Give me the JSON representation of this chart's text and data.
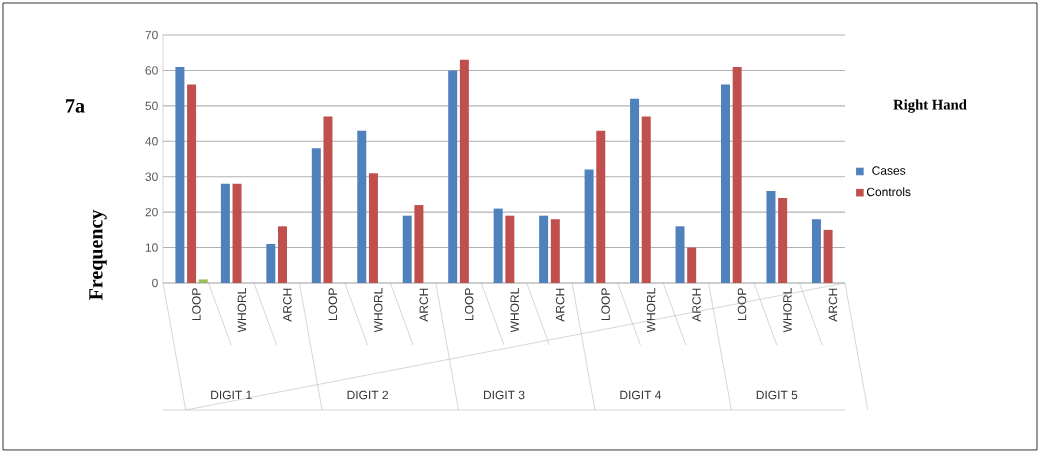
{
  "chart_data": {
    "type": "bar",
    "ylabel": "Frequency",
    "categories": [
      "LOOP",
      "WHORL",
      "ARCH",
      "LOOP",
      "WHORL",
      "ARCH",
      "LOOP",
      "WHORL",
      "ARCH",
      "LOOP",
      "WHORL",
      "ARCH",
      "LOOP",
      "WHORL",
      "ARCH"
    ],
    "series": [
      {
        "name": "Cases",
        "color": "#4f81bd",
        "values": [
          61,
          28,
          11,
          38,
          43,
          19,
          60,
          21,
          19,
          32,
          52,
          16,
          56,
          26,
          18
        ]
      },
      {
        "name": "Controls",
        "color": "#c0504d",
        "values": [
          56,
          28,
          16,
          47,
          31,
          22,
          63,
          19,
          18,
          43,
          47,
          10,
          61,
          24,
          15
        ]
      },
      {
        "color": "#9bbb59",
        "values": [
          1,
          null,
          null,
          null,
          null,
          null,
          null,
          null,
          null,
          null,
          null,
          null,
          null,
          null,
          null
        ]
      }
    ],
    "annotations": [
      "7a",
      "Right Hand",
      "DIGIT 1",
      "DIGIT 2",
      "DIGIT 3",
      "DIGIT 4",
      "DIGIT 5"
    ],
    "ylim": [
      0,
      70
    ],
    "yticks": [
      0,
      10,
      20,
      30,
      40,
      50,
      60,
      70
    ],
    "grid": "y",
    "legend": "right"
  }
}
